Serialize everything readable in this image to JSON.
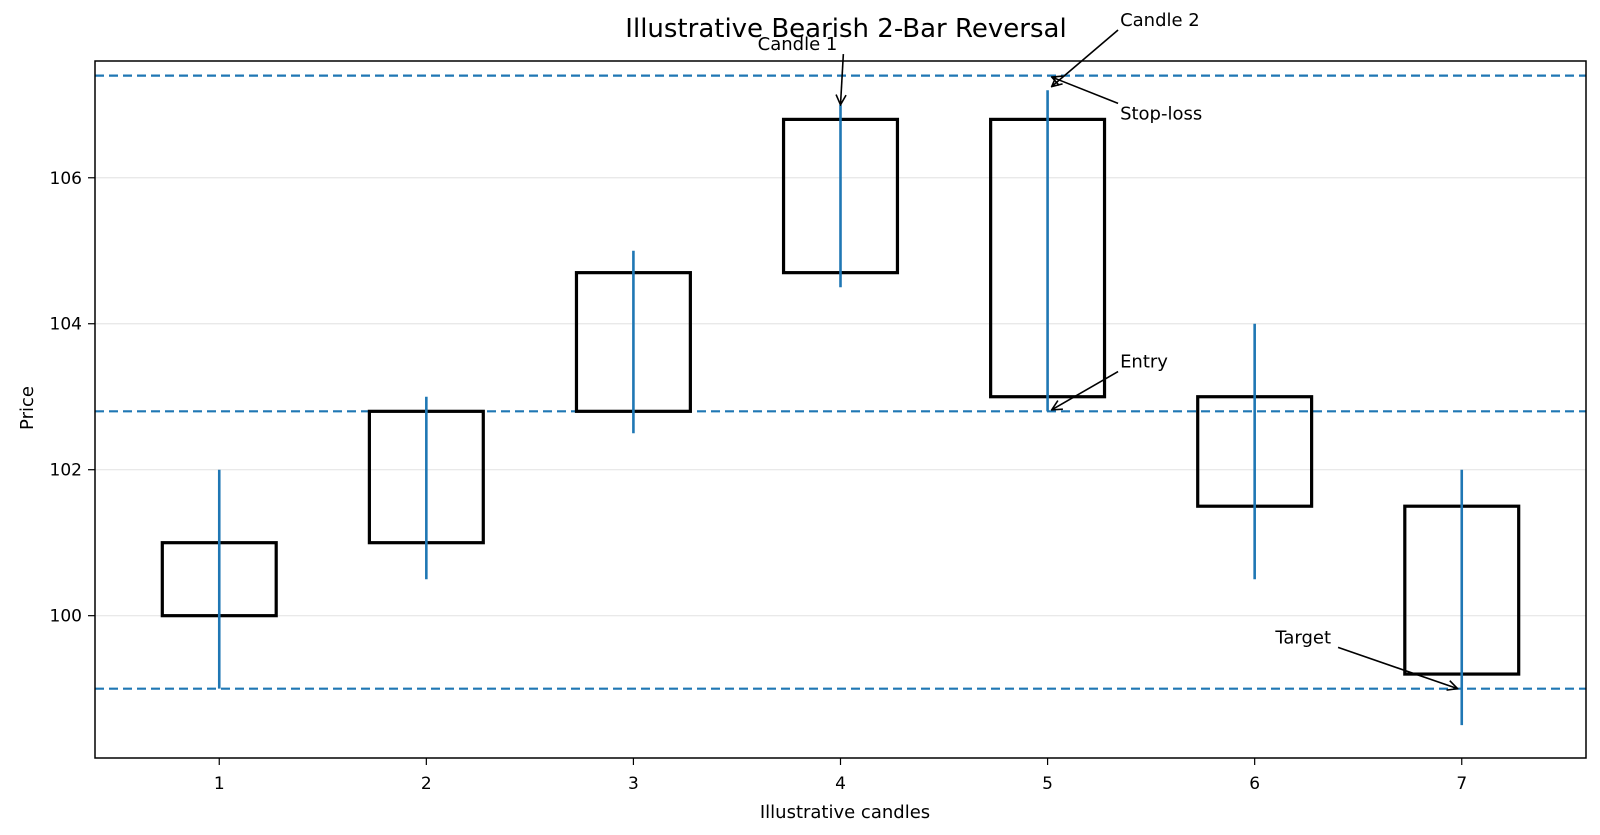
{
  "chart_data": {
    "type": "candlestick",
    "title": "Illustrative Bearish 2-Bar Reversal",
    "xlabel": "Illustrative candles",
    "ylabel": "Price",
    "xlim": [
      0.4,
      7.6
    ],
    "ylim": [
      98.05,
      107.6
    ],
    "x_ticks": [
      1,
      2,
      3,
      4,
      5,
      6,
      7
    ],
    "y_ticks": [
      100,
      102,
      104,
      106
    ],
    "grid": "horizontal",
    "colors": {
      "body": "#000000",
      "wick": "#1f77b4",
      "level": "#1f77b4",
      "grid": "#e6e6e6"
    },
    "candles": [
      {
        "x": 1,
        "open": 100.0,
        "high": 102.0,
        "low": 99.0,
        "close": 101.0
      },
      {
        "x": 2,
        "open": 101.0,
        "high": 103.0,
        "low": 100.5,
        "close": 102.8
      },
      {
        "x": 3,
        "open": 102.8,
        "high": 105.0,
        "low": 102.5,
        "close": 104.7
      },
      {
        "x": 4,
        "open": 104.7,
        "high": 107.0,
        "low": 104.5,
        "close": 106.8
      },
      {
        "x": 5,
        "open": 106.8,
        "high": 107.2,
        "low": 102.8,
        "close": 103.0
      },
      {
        "x": 6,
        "open": 103.0,
        "high": 104.0,
        "low": 100.5,
        "close": 101.5
      },
      {
        "x": 7,
        "open": 101.5,
        "high": 102.0,
        "low": 98.5,
        "close": 99.2
      }
    ],
    "levels": [
      {
        "name": "Stop-loss",
        "y": 107.4
      },
      {
        "name": "Entry",
        "y": 102.8
      },
      {
        "name": "Target",
        "y": 99.0
      }
    ],
    "annotations": [
      {
        "text": "Candle 1",
        "point": [
          4.0,
          107.0
        ],
        "text_pos": [
          3.6,
          107.75
        ]
      },
      {
        "text": "Candle 2",
        "point": [
          5.02,
          107.25
        ],
        "text_pos": [
          5.35,
          108.08
        ]
      },
      {
        "text": "Stop-loss",
        "point": [
          5.02,
          107.38
        ],
        "text_pos": [
          5.35,
          106.8
        ]
      },
      {
        "text": "Entry",
        "point": [
          5.02,
          102.82
        ],
        "text_pos": [
          5.35,
          103.4
        ]
      },
      {
        "text": "Target",
        "point": [
          6.98,
          99.0
        ],
        "text_pos": [
          6.1,
          99.62
        ]
      }
    ]
  }
}
